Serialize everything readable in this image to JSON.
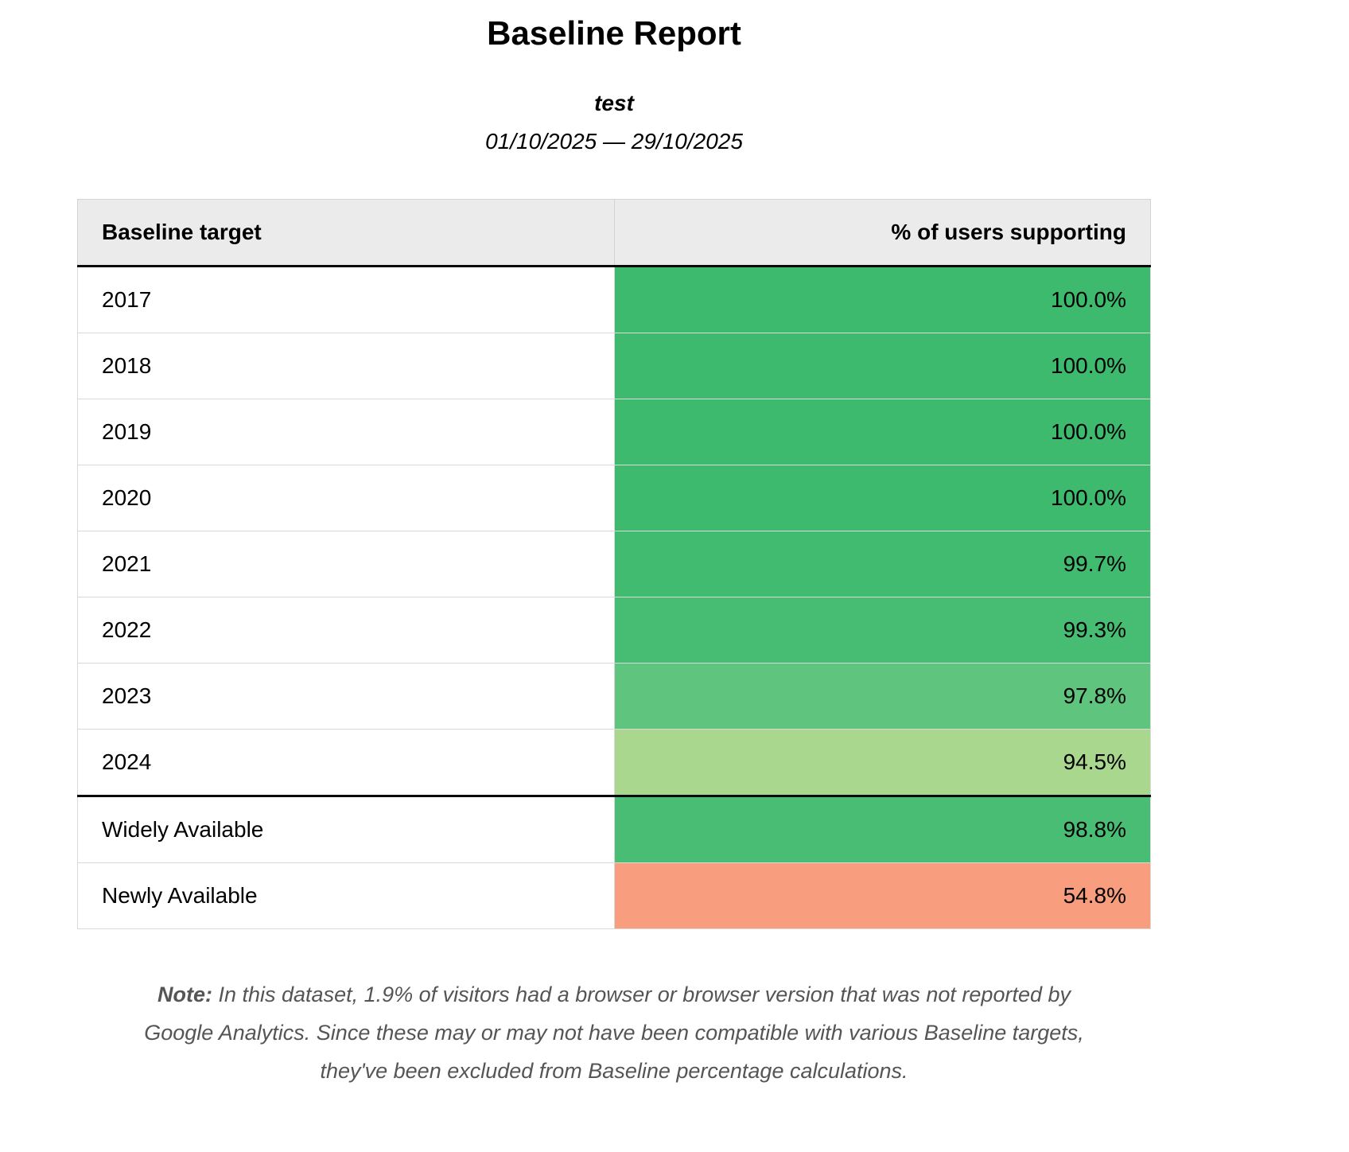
{
  "report": {
    "title": "Baseline Report",
    "subtitle": "test",
    "date_range": "01/10/2025 — 29/10/2025"
  },
  "table": {
    "headers": {
      "target": "Baseline target",
      "percent": "% of users supporting"
    },
    "rows": [
      {
        "label": "2017",
        "value": "100.0%",
        "color": "#3dba6e"
      },
      {
        "label": "2018",
        "value": "100.0%",
        "color": "#3dba6e"
      },
      {
        "label": "2019",
        "value": "100.0%",
        "color": "#3dba6e"
      },
      {
        "label": "2020",
        "value": "100.0%",
        "color": "#3dba6e"
      },
      {
        "label": "2021",
        "value": "99.7%",
        "color": "#41bb6f"
      },
      {
        "label": "2022",
        "value": "99.3%",
        "color": "#47bc73"
      },
      {
        "label": "2023",
        "value": "97.8%",
        "color": "#5fc47e"
      },
      {
        "label": "2024",
        "value": "94.5%",
        "color": "#a9d78e"
      },
      {
        "label": "Widely Available",
        "value": "98.8%",
        "color": "#4abd74"
      },
      {
        "label": "Newly Available",
        "value": "54.8%",
        "color": "#f89d7e"
      }
    ]
  },
  "note": {
    "label": "Note:",
    "text": "In this dataset, 1.9% of visitors had a browser or browser version that was not reported by Google Analytics. Since these may or may not have been compatible with various Baseline targets, they've been excluded from Baseline percentage calculations."
  }
}
